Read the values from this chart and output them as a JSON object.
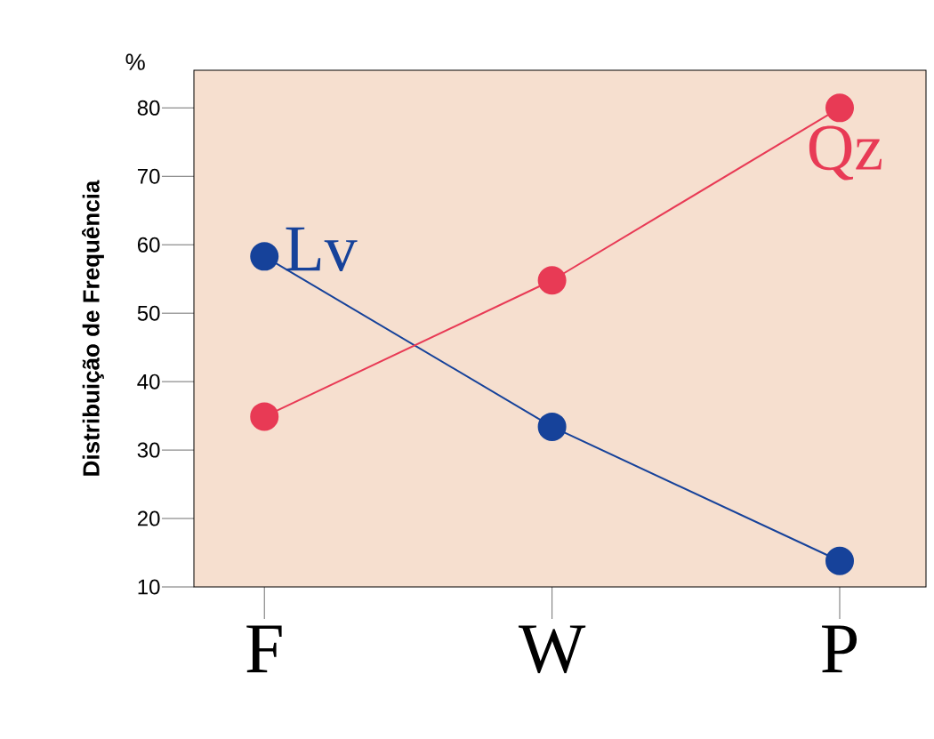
{
  "chart_data": {
    "type": "line",
    "ylabel": "Distribuição de Frequência",
    "annotations": [
      "%"
    ],
    "categories": [
      "F",
      "W",
      "P"
    ],
    "series": [
      {
        "name": "Lv",
        "color": "#16429a",
        "values": [
          58.3,
          33.4,
          13.8
        ]
      },
      {
        "name": "Qz",
        "color": "#e83a55",
        "values": [
          34.9,
          54.8,
          80
        ]
      }
    ],
    "ylim": [
      10,
      85.5
    ],
    "yticks": [
      10,
      20,
      30,
      40,
      50,
      60,
      70,
      80
    ],
    "marker": "circle",
    "line_style": "solid"
  }
}
